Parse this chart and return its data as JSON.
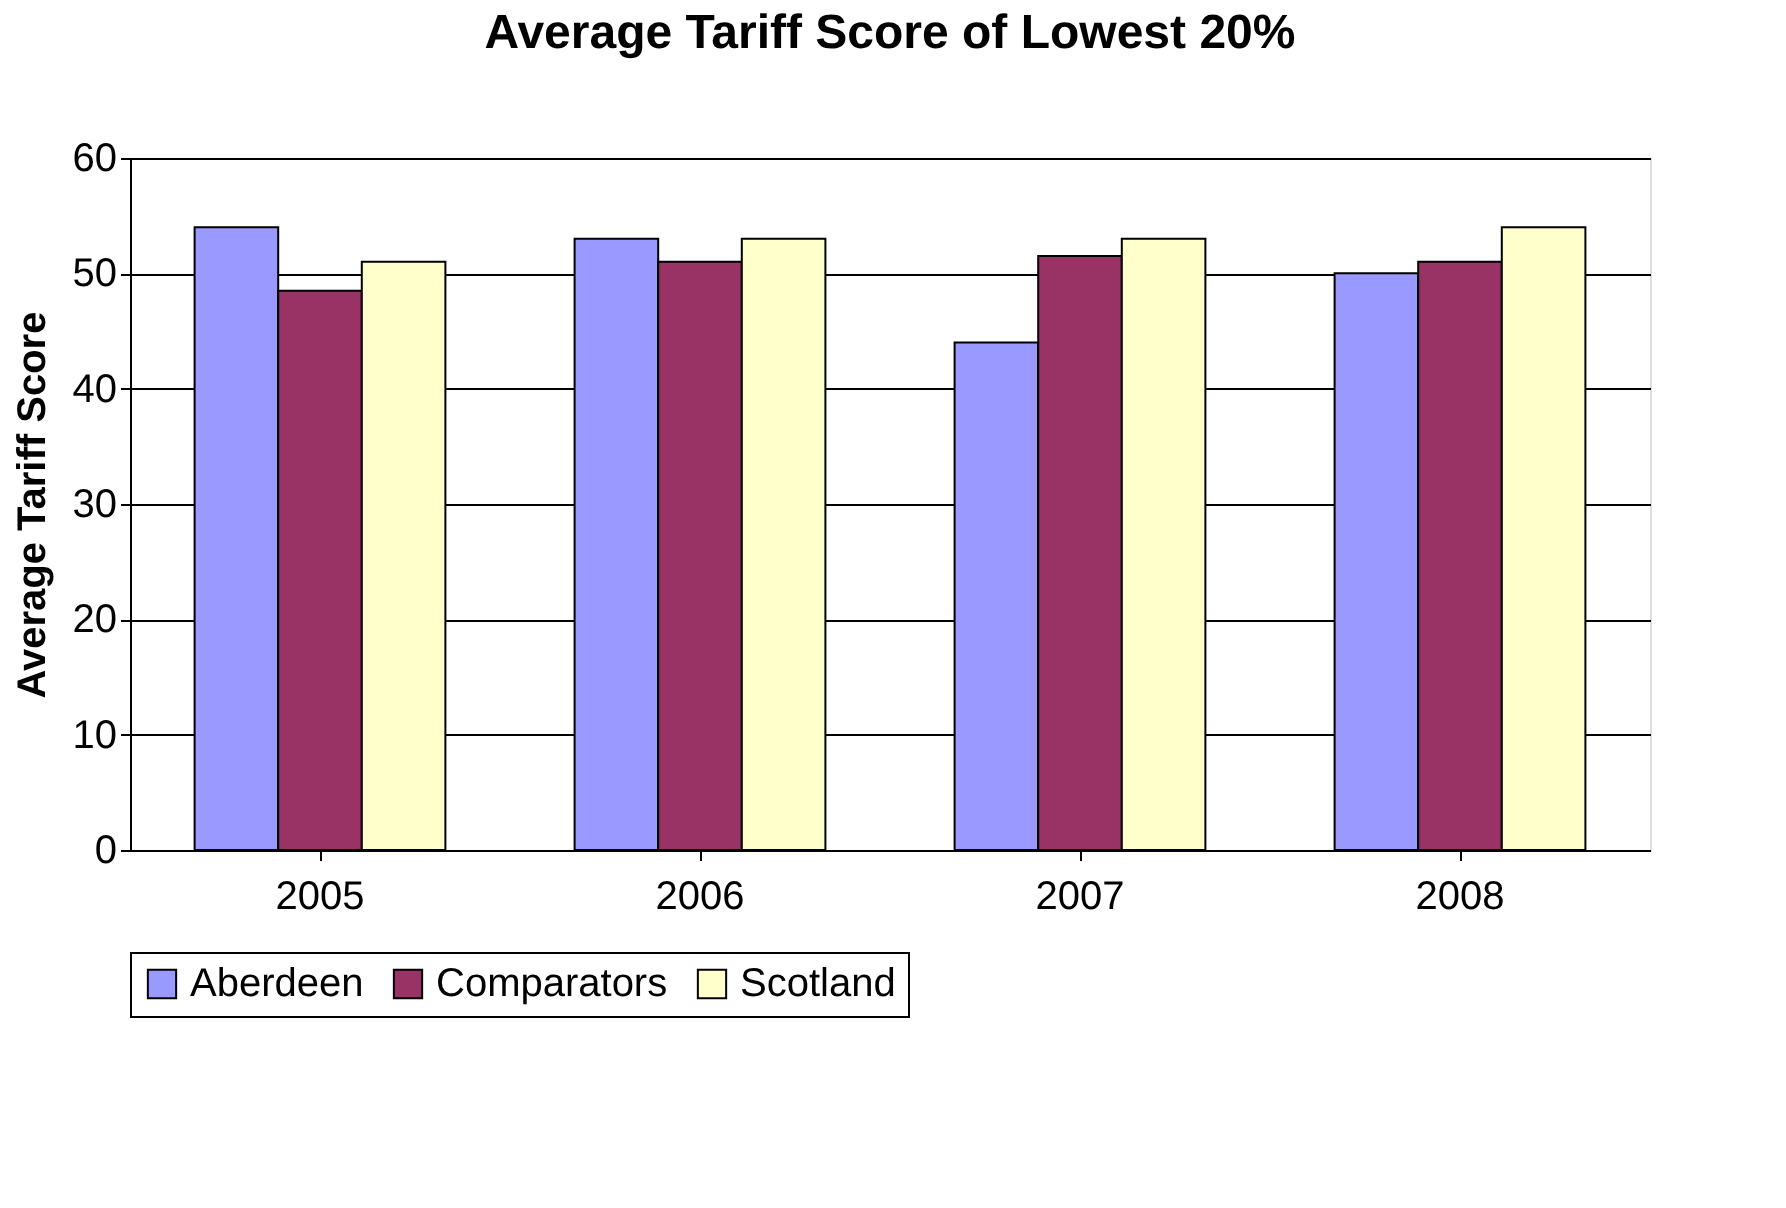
{
  "chart_data": {
    "type": "bar",
    "title": "Average Tariff Score of Lowest 20%",
    "ylabel": "Average Tariff Score",
    "categories": [
      "2005",
      "2006",
      "2007",
      "2008"
    ],
    "series": [
      {
        "name": "Aberdeen",
        "color": "#9999ff",
        "values": [
          54,
          53,
          44,
          50
        ]
      },
      {
        "name": "Comparators",
        "color": "#993366",
        "values": [
          48.5,
          51,
          51.5,
          51
        ]
      },
      {
        "name": "Scotland",
        "color": "#ffffcc",
        "values": [
          51,
          53,
          53,
          54
        ]
      }
    ],
    "ylim": [
      0,
      60
    ],
    "yticks": [
      0,
      10,
      20,
      30,
      40,
      50,
      60
    ],
    "grid": "y",
    "legend": "bottom"
  }
}
